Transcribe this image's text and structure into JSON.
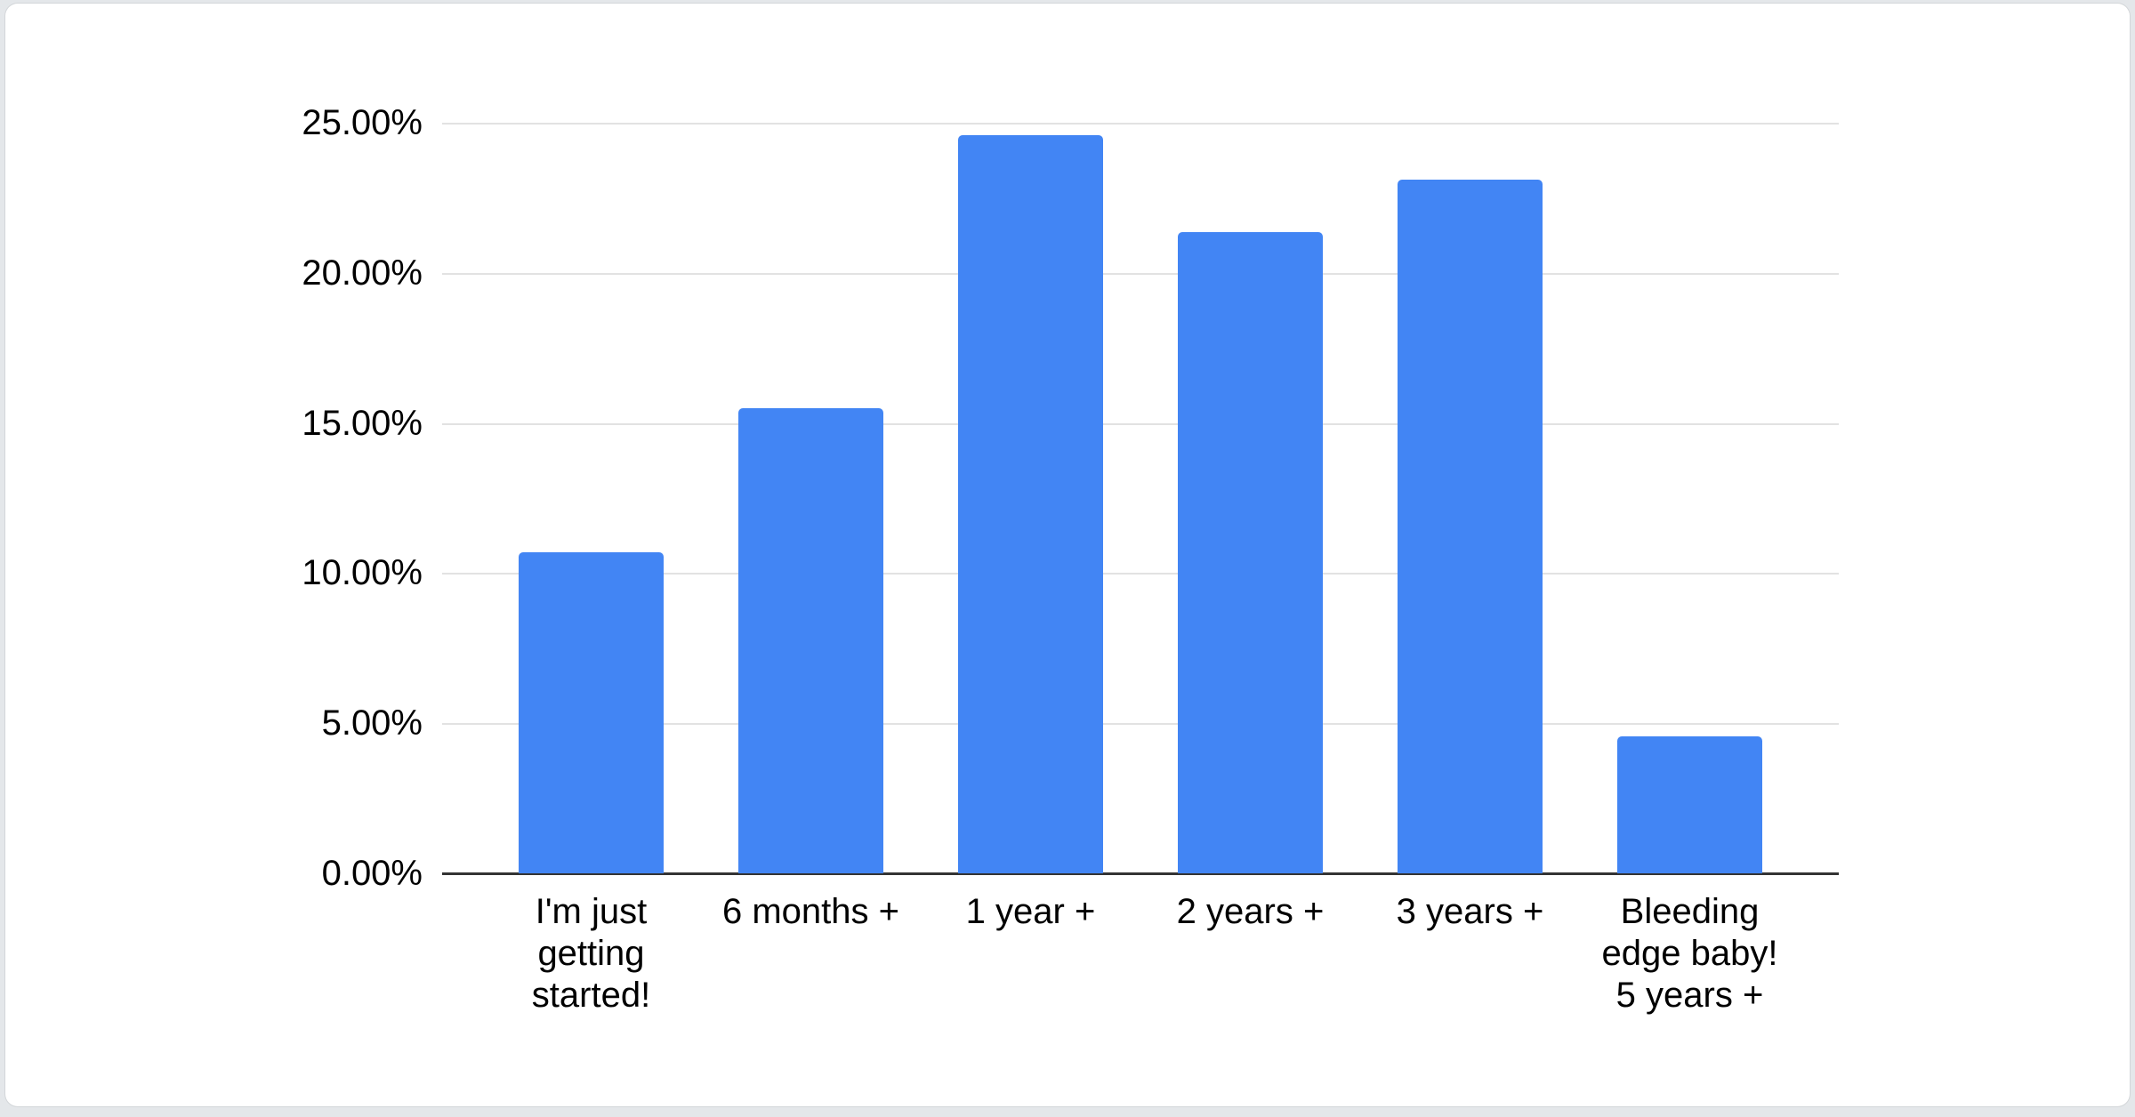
{
  "page": {
    "background_color": "#e4e7ea",
    "card_background_color": "#ffffff"
  },
  "chart_data": {
    "type": "bar",
    "title": "",
    "xlabel": "",
    "ylabel": "",
    "categories": [
      "I'm just getting started!",
      "6 months +",
      "1 year +",
      "2 years +",
      "3 years +",
      "Bleeding edge baby! 5 years +"
    ],
    "category_lines": [
      [
        "I'm just",
        "getting",
        "started!"
      ],
      [
        "6 months +"
      ],
      [
        "1 year +"
      ],
      [
        "2 years +"
      ],
      [
        "3 years +"
      ],
      [
        "Bleeding",
        "edge baby!",
        "5 years +"
      ]
    ],
    "values": [
      10.7,
      15.5,
      24.6,
      21.35,
      23.1,
      4.55
    ],
    "unit": "%",
    "ylim": [
      0,
      25
    ],
    "ytick_step": 5,
    "ytick_labels": [
      "0.00%",
      "5.00%",
      "10.00%",
      "15.00%",
      "20.00%",
      "25.00%"
    ],
    "grid": true,
    "legend": "none",
    "colors": {
      "bar": "#4285F4",
      "gridline": "#e2e2e2",
      "baseline": "#333333",
      "axis_text": "#000000"
    }
  }
}
